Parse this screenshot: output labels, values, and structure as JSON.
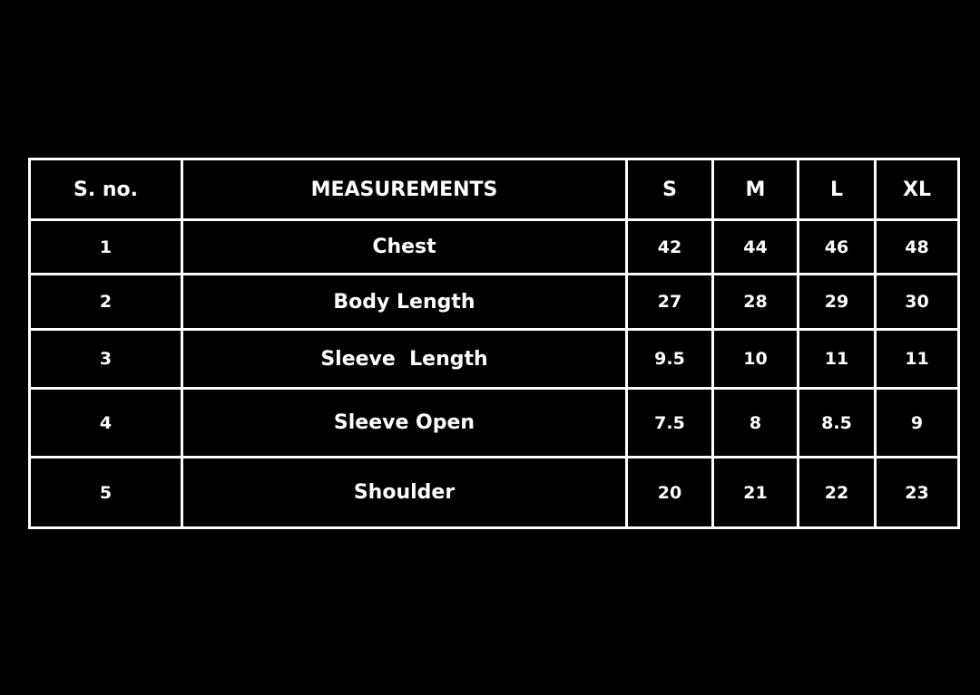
{
  "table": {
    "headers": [
      "S. no.",
      "MEASUREMENTS",
      "S",
      "M",
      "L",
      "XL"
    ],
    "rows": [
      {
        "sno": "1",
        "name": "Chest",
        "s": "42",
        "m": "44",
        "l": "46",
        "xl": "48"
      },
      {
        "sno": "2",
        "name": "Body Length",
        "s": "27",
        "m": "28",
        "l": "29",
        "xl": "30"
      },
      {
        "sno": "3",
        "name": "Sleeve  Length",
        "s": "9.5",
        "m": "10",
        "l": "11",
        "xl": "11"
      },
      {
        "sno": "4",
        "name": "Sleeve Open",
        "s": "7.5",
        "m": "8",
        "l": "8.5",
        "xl": "9"
      },
      {
        "sno": "5",
        "name": "Shoulder",
        "s": "20",
        "m": "21",
        "l": "22",
        "xl": "23"
      }
    ]
  },
  "colors": {
    "background": "#000000",
    "text": "#ffffff",
    "border": "#ffffff"
  }
}
